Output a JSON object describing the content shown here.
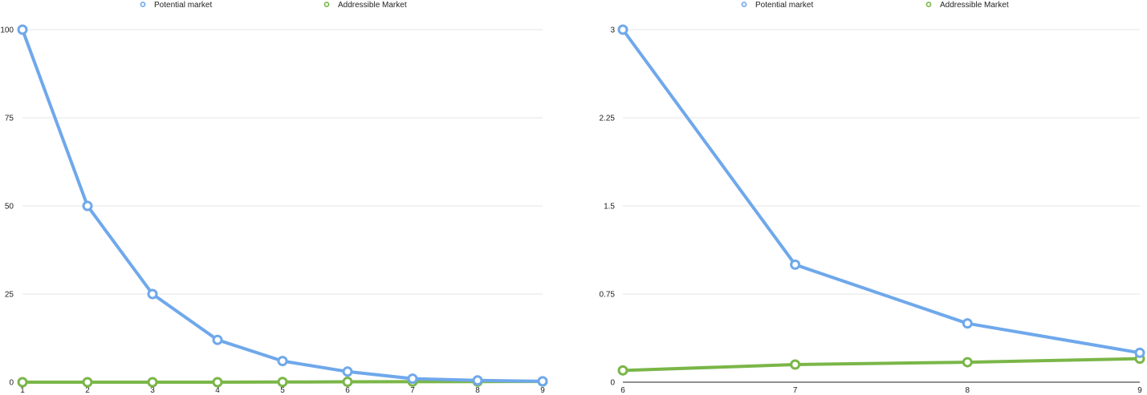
{
  "chart_data": [
    {
      "type": "line",
      "x": [
        1,
        2,
        3,
        4,
        5,
        6,
        7,
        8,
        9
      ],
      "series": [
        {
          "name": "Potential market",
          "color": "#6fa8eb",
          "values": [
            100,
            50,
            25,
            12,
            6,
            3,
            1,
            0.5,
            0.25
          ]
        },
        {
          "name": "Addressible Market",
          "color": "#7ab648",
          "values": [
            0,
            0,
            0,
            0,
            0.05,
            0.1,
            0.15,
            0.17,
            0.2
          ]
        }
      ],
      "yticks": [
        "0",
        "25",
        "50",
        "75",
        "100"
      ],
      "ytick_values": [
        0,
        25,
        50,
        75,
        100
      ],
      "xticks": [
        "1",
        "2",
        "3",
        "4",
        "5",
        "6",
        "7",
        "8",
        "9"
      ],
      "ylim": [
        0,
        100
      ],
      "xlim": [
        1,
        9
      ],
      "legend": "top-center",
      "grid": true
    },
    {
      "type": "line",
      "x": [
        6,
        7,
        8,
        9
      ],
      "series": [
        {
          "name": "Potential market",
          "color": "#6fa8eb",
          "values": [
            3,
            1,
            0.5,
            0.25
          ]
        },
        {
          "name": "Addressible Market",
          "color": "#7ab648",
          "values": [
            0.1,
            0.15,
            0.17,
            0.2
          ]
        }
      ],
      "yticks": [
        "0",
        "0.75",
        "1.5",
        "2.25",
        "3"
      ],
      "ytick_values": [
        0,
        0.75,
        1.5,
        2.25,
        3
      ],
      "xticks": [
        "6",
        "7",
        "8",
        "9"
      ],
      "ylim": [
        0,
        3
      ],
      "xlim": [
        6,
        9
      ],
      "legend": "top-center",
      "grid": true
    }
  ]
}
